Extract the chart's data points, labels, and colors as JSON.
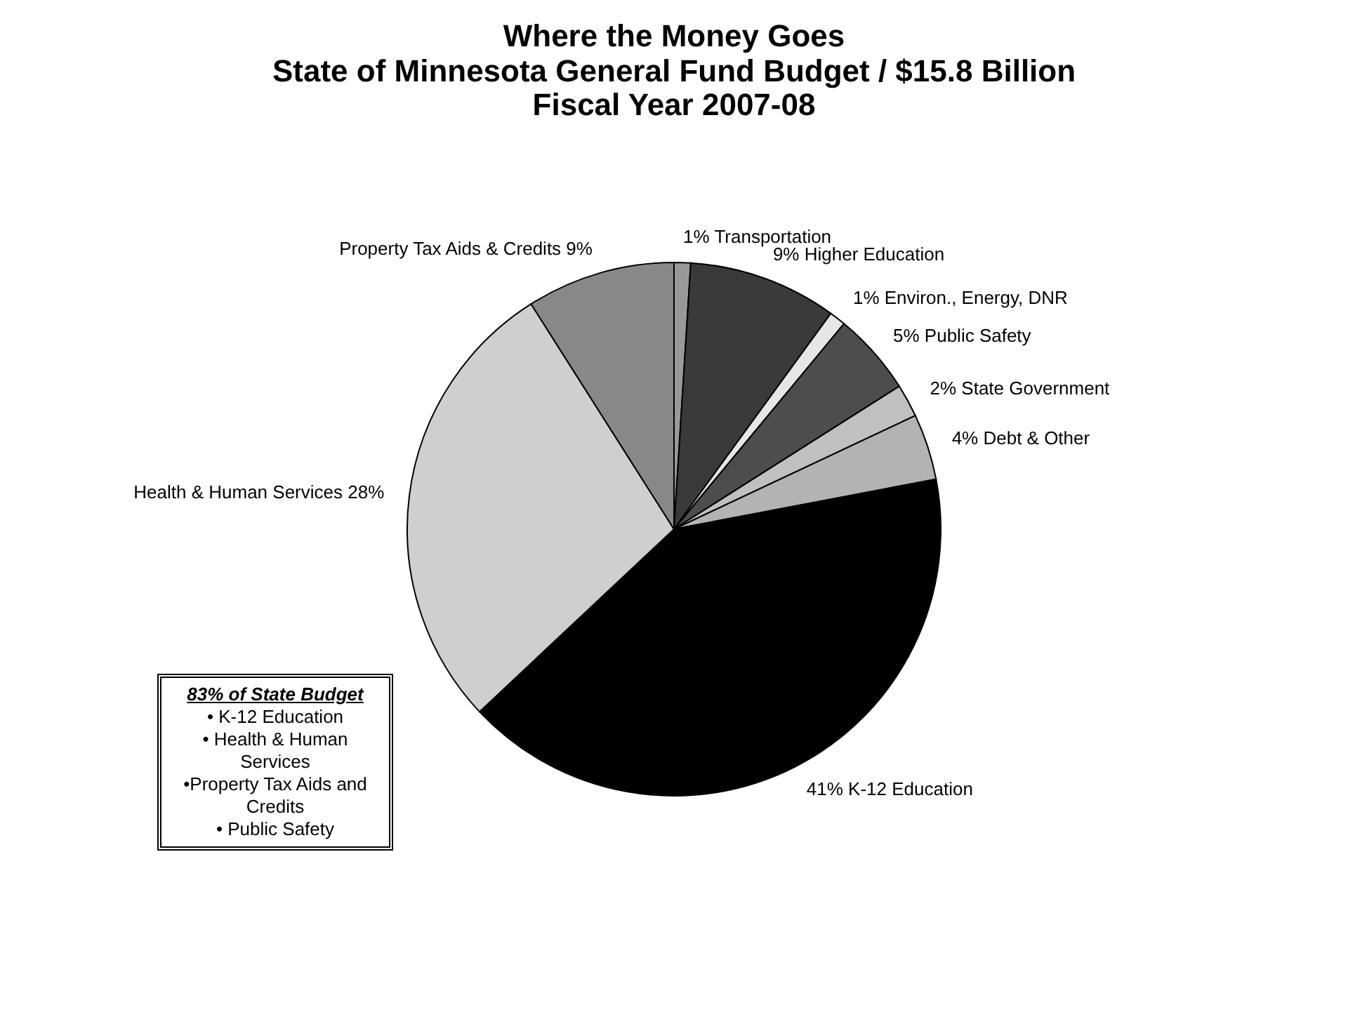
{
  "chart_data": {
    "type": "pie",
    "title": "Where the Money Goes",
    "subtitle": "State of Minnesota General Fund Budget / $15.8 Billion\nFiscal Year 2007-08",
    "categories": [
      "Transportation",
      "Higher Education",
      "Environ., Energy, DNR",
      "Public Safety",
      "State Government",
      "Debt & Other",
      "K-12 Education",
      "Health & Human Services",
      "Property Tax Aids & Credits"
    ],
    "values": [
      1,
      9,
      1,
      5,
      2,
      4,
      41,
      28,
      9
    ],
    "value_labels": [
      "1%",
      "9%",
      "1%",
      "5%",
      "2%",
      "4%",
      "41%",
      "28%",
      "9%"
    ],
    "colors": [
      "#999999",
      "#3a3a3a",
      "#e6e6e6",
      "#4d4d4d",
      "#c0c0c0",
      "#b3b3b3",
      "#000000",
      "#cfcfcf",
      "#888888"
    ],
    "annotations": [
      "83% of State Budget",
      "• K-12 Education",
      "• Health & Human Services",
      "•Property Tax Aids and Credits",
      "• Public Safety"
    ]
  }
}
